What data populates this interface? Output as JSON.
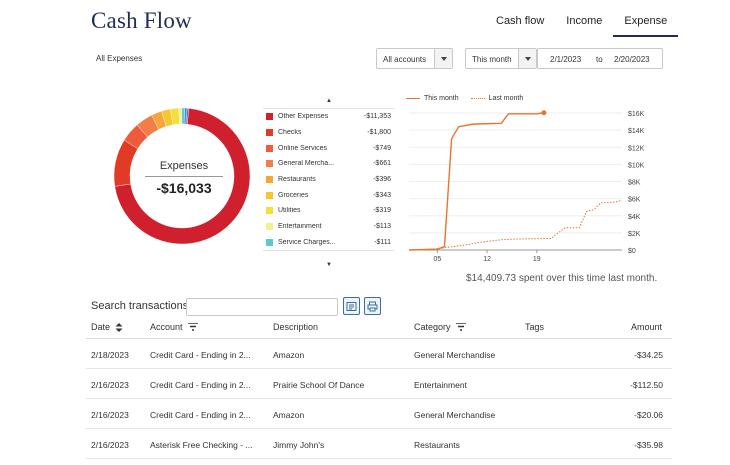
{
  "header": {
    "title": "Cash Flow"
  },
  "tabs": [
    "Cash flow",
    "Income",
    "Expense"
  ],
  "active_tab": "Expense",
  "filters": {
    "label": "All Expenses",
    "accounts": "All accounts",
    "period": "This month",
    "start_date": "2/1/2023",
    "to": "to",
    "end_date": "2/20/2023"
  },
  "donut": {
    "label": "Expenses",
    "total": "-$16,033"
  },
  "categories": [
    {
      "name": "Other Expenses",
      "amount": "-$11,353",
      "value": 11353,
      "color": "#d0202e"
    },
    {
      "name": "Checks",
      "amount": "-$1,800",
      "value": 1800,
      "color": "#e23b25"
    },
    {
      "name": "Online Services",
      "amount": "-$749",
      "value": 749,
      "color": "#ef5a3a"
    },
    {
      "name": "General Mercha...",
      "amount": "-$661",
      "value": 661,
      "color": "#f27d48"
    },
    {
      "name": "Restaurants",
      "amount": "-$396",
      "value": 396,
      "color": "#f5a53a"
    },
    {
      "name": "Groceries",
      "amount": "-$343",
      "value": 343,
      "color": "#f7c52f"
    },
    {
      "name": "Utilities",
      "amount": "-$319",
      "value": 319,
      "color": "#f4df3a"
    },
    {
      "name": "Entertainment",
      "amount": "-$113",
      "value": 113,
      "color": "#f6ef8a"
    },
    {
      "name": "Service Charges...",
      "amount": "-$111",
      "value": 111,
      "color": "#59c9d6"
    }
  ],
  "extra_slices": [
    {
      "value": 90,
      "color": "#3a8fd9"
    },
    {
      "value": 60,
      "color": "#7a4fc4"
    }
  ],
  "chart_data": {
    "type": "line",
    "series": [
      {
        "name": "This month",
        "color": "#e8742f",
        "style": "solid",
        "points": [
          [
            1,
            0
          ],
          [
            5,
            80
          ],
          [
            6,
            400
          ],
          [
            7,
            13000
          ],
          [
            8,
            14400
          ],
          [
            10,
            14700
          ],
          [
            14,
            14800
          ],
          [
            15,
            15900
          ],
          [
            19,
            15900
          ],
          [
            20,
            16033
          ]
        ]
      },
      {
        "name": "Last month",
        "color": "#e8742f",
        "style": "dotted",
        "points": [
          [
            1,
            0
          ],
          [
            5,
            150
          ],
          [
            9,
            600
          ],
          [
            11,
            900
          ],
          [
            14,
            1200
          ],
          [
            17,
            1300
          ],
          [
            21,
            1350
          ],
          [
            22,
            2000
          ],
          [
            23,
            2600
          ],
          [
            25,
            2600
          ],
          [
            26,
            4500
          ],
          [
            27,
            4700
          ],
          [
            28,
            5500
          ],
          [
            30,
            5600
          ],
          [
            31,
            5800
          ]
        ]
      }
    ],
    "x_ticks": [
      "05",
      "12",
      "19"
    ],
    "y_ticks": [
      "$16K",
      "$14K",
      "$12K",
      "$10K",
      "$8K",
      "$6K",
      "$4K",
      "$2K",
      "$0"
    ],
    "xlim": [
      1,
      31
    ],
    "ylim": [
      0,
      16000
    ],
    "caption": "$14,409.73 spent over this time last month."
  },
  "search": {
    "label": "Search transactions",
    "placeholder": ""
  },
  "table": {
    "headers": {
      "date": "Date",
      "account": "Account",
      "description": "Description",
      "category": "Category",
      "tags": "Tags",
      "amount": "Amount"
    },
    "rows": [
      {
        "date": "2/18/2023",
        "account": "Credit Card - Ending in 2...",
        "description": "Amazon",
        "category": "General Merchandise",
        "tags": "",
        "amount": "-$34.25"
      },
      {
        "date": "2/16/2023",
        "account": "Credit Card - Ending in 2...",
        "description": "Prairie School Of Dance",
        "category": "Entertainment",
        "tags": "",
        "amount": "-$112.50"
      },
      {
        "date": "2/16/2023",
        "account": "Credit Card - Ending in 2...",
        "description": "Amazon",
        "category": "General Merchandise",
        "tags": "",
        "amount": "-$20.06"
      },
      {
        "date": "2/16/2023",
        "account": "Asterisk Free Checking - ...",
        "description": "Jimmy John's",
        "category": "Restaurants",
        "tags": "",
        "amount": "-$35.98"
      }
    ]
  }
}
